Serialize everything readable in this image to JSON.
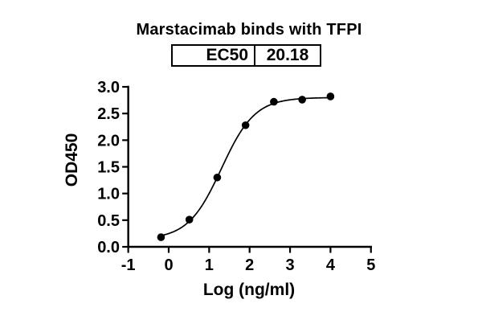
{
  "figure": {
    "background": "#ffffff",
    "foreground": "#000000"
  },
  "chart_data": {
    "type": "scatter",
    "title": "Marstacimab binds with TFPI",
    "xlabel": "Log (ng/ml)",
    "ylabel": "OD450",
    "xlim": [
      -1,
      5
    ],
    "ylim": [
      0,
      3
    ],
    "xticks": [
      -1,
      0,
      1,
      2,
      3,
      4,
      5
    ],
    "xtick_labels": [
      "-1",
      "0",
      "1",
      "2",
      "3",
      "4",
      "5"
    ],
    "yticks": [
      0,
      0.5,
      1,
      1.5,
      2,
      2.5,
      3
    ],
    "ytick_labels": [
      "0.0",
      "0.5",
      "1.0",
      "1.5",
      "2.0",
      "2.5",
      "3.0"
    ],
    "grid": false,
    "legend": null,
    "series": [
      {
        "name": "Marstacimab",
        "marker": "filled-circle",
        "color": "#000000",
        "x": [
          -0.19,
          0.51,
          1.2,
          1.9,
          2.6,
          3.3,
          4.0
        ],
        "y": [
          0.18,
          0.51,
          1.3,
          2.28,
          2.72,
          2.76,
          2.82
        ]
      }
    ],
    "fit_curve": {
      "model": "4PL-sigmoid",
      "bottom": 0.14,
      "top": 2.8,
      "log_ec50": 1.305,
      "hill": 1.05,
      "x_start": -0.19,
      "x_end": 4.0,
      "color": "#000000"
    },
    "ec50_table": {
      "label": "EC50",
      "value": "20.18"
    }
  }
}
